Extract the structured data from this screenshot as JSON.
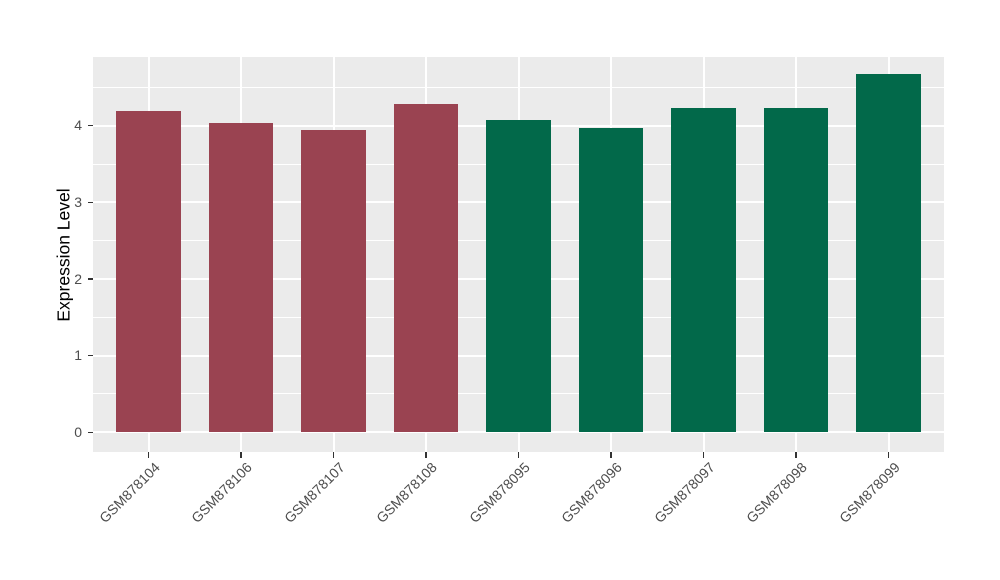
{
  "chart_data": {
    "type": "bar",
    "title": "",
    "xlabel": "",
    "ylabel": "Expression Level",
    "categories": [
      "GSM878104",
      "GSM878106",
      "GSM878107",
      "GSM878108",
      "GSM878095",
      "GSM878096",
      "GSM878097",
      "GSM878098",
      "GSM878099"
    ],
    "values": [
      4.19,
      4.04,
      3.94,
      4.28,
      4.08,
      3.97,
      4.23,
      4.23,
      4.67
    ],
    "bar_colors": [
      "#9A4351",
      "#9A4351",
      "#9A4351",
      "#9A4351",
      "#02694A",
      "#02694A",
      "#02694A",
      "#02694A",
      "#02694A"
    ],
    "yticks": [
      0,
      1,
      2,
      3,
      4
    ],
    "y_minor_ticks": [
      0.5,
      1.5,
      2.5,
      3.5,
      4.5
    ],
    "ylim": [
      -0.23,
      4.9
    ],
    "grid": true,
    "legend": "none",
    "colors": {
      "panel_background": "#EBEBEB",
      "gridline": "#FFFFFF",
      "axis_text": "#4D4D4D",
      "axis_title": "#000000",
      "tick_mark": "#333333",
      "figure_background": "#FFFFFF"
    }
  }
}
